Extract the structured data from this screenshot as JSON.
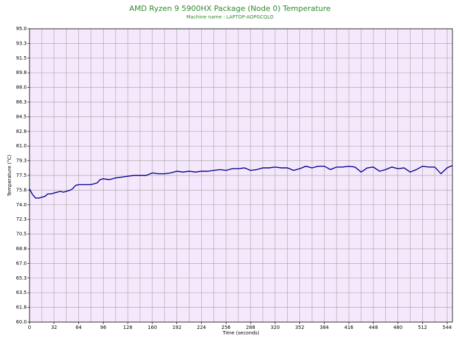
{
  "chart_data": {
    "type": "line",
    "title": "AMD Ryzen 9 5900HX Package (Node 0) Temperature",
    "subtitle": "Machine name : LAPTOP-AOPGCQLD",
    "x_label": "Time (seconds)",
    "y_label": "Temperature (°C)",
    "xlim": [
      0,
      551
    ],
    "ylim": [
      60,
      95
    ],
    "xticks": [
      0,
      32,
      64,
      96,
      128,
      160,
      192,
      224,
      256,
      288,
      320,
      352,
      384,
      416,
      448,
      480,
      512,
      544
    ],
    "xminor": [
      16,
      48,
      80,
      112,
      144,
      176,
      208,
      240,
      272,
      304,
      336,
      368,
      400,
      432,
      464,
      496,
      528
    ],
    "yticks": [
      {
        "value": 60,
        "label": "60.0"
      },
      {
        "value": 61.75,
        "label": "61.8"
      },
      63.5,
      {
        "value": 65.25,
        "label": "65.3"
      },
      {
        "value": 67,
        "label": "67.0"
      },
      {
        "value": 68.75,
        "label": "68.8"
      },
      70.5,
      {
        "value": 72.25,
        "label": "72.3"
      },
      {
        "value": 74,
        "label": "74.0"
      },
      {
        "value": 75.75,
        "label": "75.8"
      },
      77.5,
      {
        "value": 79.25,
        "label": "79.3"
      },
      {
        "value": 81,
        "label": "81.0"
      },
      {
        "value": 82.75,
        "label": "82.8"
      },
      84.5,
      {
        "value": 86.25,
        "label": "86.3"
      },
      {
        "value": 88,
        "label": "88.0"
      },
      {
        "value": 89.75,
        "label": "89.8"
      },
      91.5,
      {
        "value": 93.25,
        "label": "93.3"
      },
      {
        "value": 95,
        "label": "95.0"
      }
    ],
    "grid": true,
    "x": [
      0,
      4,
      8,
      12,
      16,
      20,
      24,
      28,
      32,
      36,
      40,
      44,
      48,
      52,
      56,
      60,
      64,
      72,
      80,
      88,
      92,
      96,
      104,
      112,
      120,
      128,
      136,
      144,
      152,
      160,
      168,
      176,
      184,
      192,
      200,
      208,
      216,
      224,
      232,
      240,
      248,
      256,
      264,
      272,
      280,
      288,
      296,
      304,
      312,
      320,
      328,
      336,
      344,
      352,
      360,
      368,
      376,
      384,
      392,
      400,
      408,
      416,
      424,
      432,
      440,
      448,
      456,
      464,
      472,
      480,
      488,
      496,
      504,
      512,
      520,
      528,
      536,
      544,
      551
    ],
    "series": [
      {
        "name": "Temperature",
        "color": "#00008b",
        "values": [
          75.9,
          75.2,
          74.8,
          74.8,
          74.9,
          75.0,
          75.3,
          75.3,
          75.4,
          75.5,
          75.6,
          75.5,
          75.6,
          75.7,
          75.9,
          76.3,
          76.4,
          76.4,
          76.4,
          76.6,
          77.0,
          77.1,
          77.0,
          77.2,
          77.3,
          77.4,
          77.5,
          77.5,
          77.5,
          77.8,
          77.7,
          77.7,
          77.8,
          78.0,
          77.9,
          78.0,
          77.9,
          78.0,
          78.0,
          78.1,
          78.2,
          78.1,
          78.3,
          78.3,
          78.4,
          78.1,
          78.2,
          78.4,
          78.4,
          78.5,
          78.4,
          78.4,
          78.1,
          78.3,
          78.6,
          78.4,
          78.6,
          78.6,
          78.2,
          78.5,
          78.5,
          78.6,
          78.5,
          77.9,
          78.4,
          78.5,
          78.0,
          78.2,
          78.5,
          78.3,
          78.4,
          77.9,
          78.2,
          78.6,
          78.5,
          78.5,
          77.7,
          78.4,
          78.7
        ]
      }
    ]
  }
}
